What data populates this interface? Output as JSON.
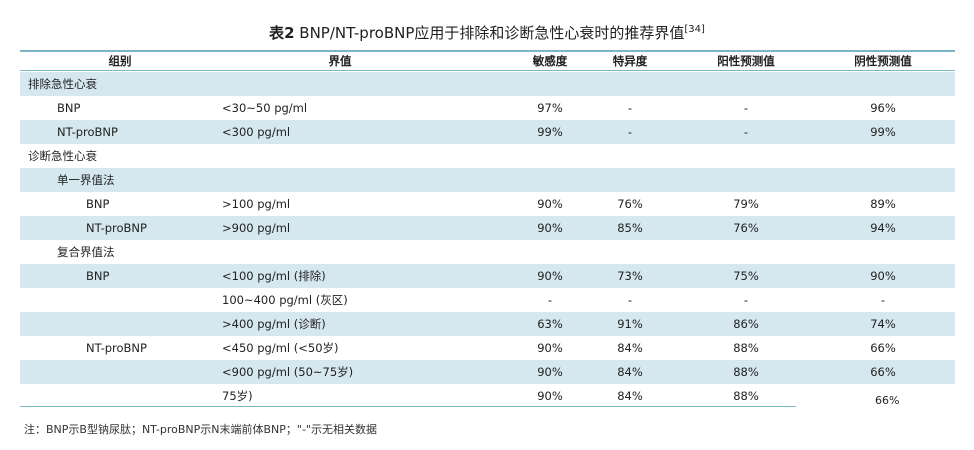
{
  "table": {
    "title_prefix": "表2",
    "title_main": "BNP/NT-proBNP应用于排除和诊断急性心衰时的推荐界值",
    "title_ref": "[34]",
    "headers": {
      "group": "组别",
      "cutoff": "界值",
      "sensitivity": "敏感度",
      "specificity": "特异度",
      "ppv": "阳性预测值",
      "npv": "阴性预测值"
    },
    "rows": [
      {
        "group": "排除急性心衰",
        "cutoff": "",
        "sensitivity": "",
        "specificity": "",
        "ppv": "",
        "npv": ""
      },
      {
        "group": "BNP",
        "cutoff": "<30~50 pg/ml",
        "sensitivity": "97%",
        "specificity": "-",
        "ppv": "-",
        "npv": "96%"
      },
      {
        "group": "NT-proBNP",
        "cutoff": "<300 pg/ml",
        "sensitivity": "99%",
        "specificity": "-",
        "ppv": "-",
        "npv": "99%"
      },
      {
        "group": "诊断急性心衰",
        "cutoff": "",
        "sensitivity": "",
        "specificity": "",
        "ppv": "",
        "npv": ""
      },
      {
        "group": "单一界值法",
        "cutoff": "",
        "sensitivity": "",
        "specificity": "",
        "ppv": "",
        "npv": ""
      },
      {
        "group": "BNP",
        "cutoff": ">100 pg/ml",
        "sensitivity": "90%",
        "specificity": "76%",
        "ppv": "79%",
        "npv": "89%"
      },
      {
        "group": "NT-proBNP",
        "cutoff": ">900 pg/ml",
        "sensitivity": "90%",
        "specificity": "85%",
        "ppv": "76%",
        "npv": "94%"
      },
      {
        "group": "复合界值法",
        "cutoff": "",
        "sensitivity": "",
        "specificity": "",
        "ppv": "",
        "npv": ""
      },
      {
        "group": "BNP",
        "cutoff": "<100 pg/ml (排除)",
        "sensitivity": "90%",
        "specificity": "73%",
        "ppv": "75%",
        "npv": "90%"
      },
      {
        "group": "",
        "cutoff": "100~400 pg/ml (灰区)",
        "sensitivity": "-",
        "specificity": "-",
        "ppv": "-",
        "npv": "-"
      },
      {
        "group": "",
        "cutoff": ">400 pg/ml (诊断)",
        "sensitivity": "63%",
        "specificity": "91%",
        "ppv": "86%",
        "npv": "74%"
      },
      {
        "group": "NT-proBNP",
        "cutoff": "<450 pg/ml (<50岁)",
        "sensitivity": "90%",
        "specificity": "84%",
        "ppv": "88%",
        "npv": "66%"
      },
      {
        "group": "",
        "cutoff": "<900 pg/ml (50~75岁)",
        "sensitivity": "90%",
        "specificity": "84%",
        "ppv": "88%",
        "npv": "66%"
      },
      {
        "group": "",
        "cutoff": "75岁)",
        "sensitivity": "90%",
        "specificity": "84%",
        "ppv": "88%",
        "npv": ""
      }
    ],
    "stray_value": "66%",
    "footnote": "注：BNP示B型钠尿肽；NT-proBNP示N末端前体BNP；\"-\"示无相关数据"
  }
}
